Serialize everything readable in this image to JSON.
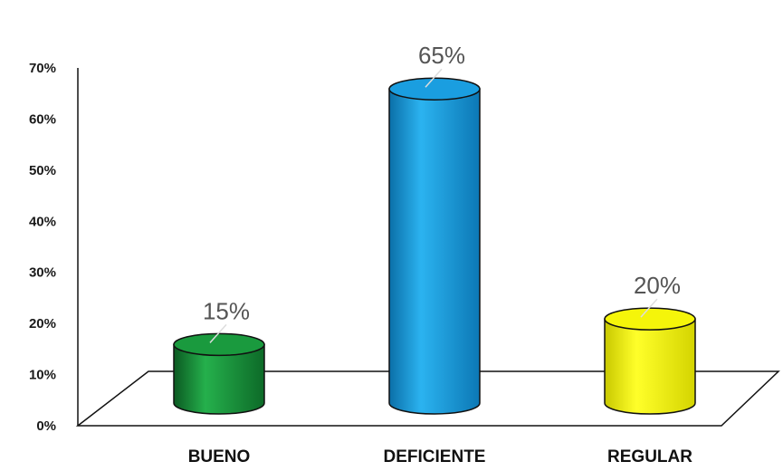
{
  "chart_data": {
    "type": "bar",
    "style": "3d-cylinder",
    "categories": [
      "BUENO",
      "DEFICIENTE",
      "REGULAR"
    ],
    "values": [
      15,
      65,
      20
    ],
    "data_labels": [
      "15%",
      "65%",
      "20%"
    ],
    "colors": [
      "#1a9a3e",
      "#1a9ee0",
      "#f5f50a"
    ],
    "yticks": [
      "0%",
      "10%",
      "20%",
      "30%",
      "40%",
      "50%",
      "60%",
      "70%"
    ],
    "ylim": [
      0,
      70
    ],
    "title": "",
    "xlabel": "",
    "ylabel": "",
    "grid": false,
    "legend": "none"
  }
}
